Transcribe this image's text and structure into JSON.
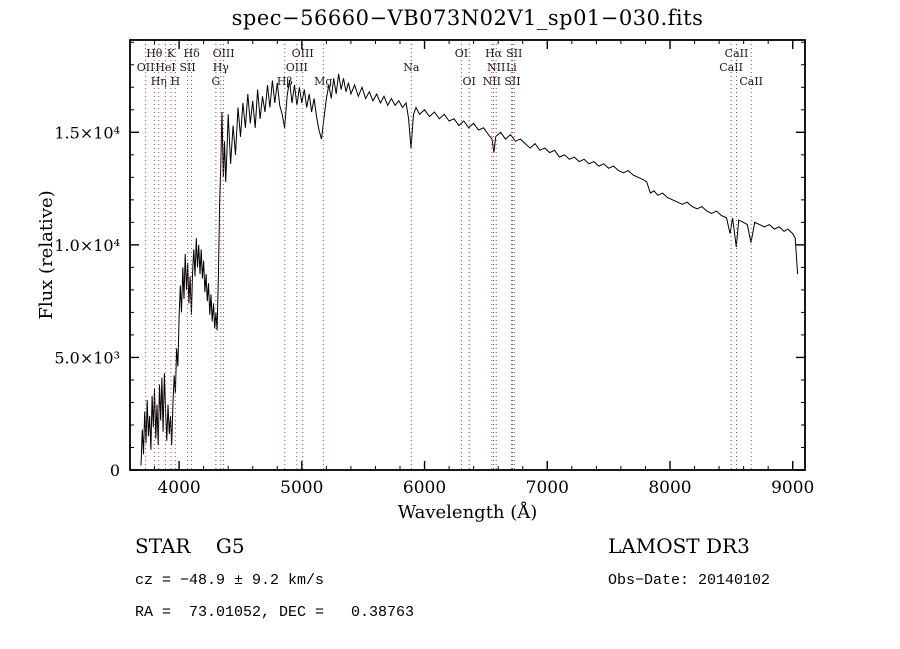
{
  "title": "spec−56660−VB073N02V1_sp01−030.fits",
  "footer": {
    "class_label": "STAR    G5",
    "survey": "LAMOST DR3",
    "cz": "cz = −48.9 ± 9.2 km/s",
    "obs_date": "Obs−Date: 20140102",
    "ra_dec": "RA =  73.01052, DEC =   0.38763"
  },
  "chart_data": {
    "type": "line",
    "title": "spec−56660−VB073N02V1_sp01−030.fits",
    "xlabel": "Wavelength (Å)",
    "ylabel": "Flux (relative)",
    "xlim": [
      3600,
      9100
    ],
    "ylim": [
      0,
      19100
    ],
    "grid": false,
    "legend": "none",
    "line_color": "#000000",
    "marker_color": "#b04040",
    "label_color": "#1a1a1a",
    "x_ticks": [
      {
        "value": 4000,
        "label": "4000"
      },
      {
        "value": 5000,
        "label": "5000"
      },
      {
        "value": 6000,
        "label": "6000"
      },
      {
        "value": 7000,
        "label": "7000"
      },
      {
        "value": 8000,
        "label": "8000"
      },
      {
        "value": 9000,
        "label": "9000"
      }
    ],
    "y_ticks": [
      {
        "value": 0,
        "label": "0"
      },
      {
        "value": 5000,
        "label": "5.0×10³"
      },
      {
        "value": 10000,
        "label": "1.0×10⁴"
      },
      {
        "value": 15000,
        "label": "1.5×10⁴"
      }
    ],
    "x_minor_step": 200,
    "y_minor_step": 1000,
    "spectral_lines": [
      {
        "label": "OII",
        "wavelength": 3727,
        "row": 2
      },
      {
        "label": "Hθ",
        "wavelength": 3798,
        "row": 1
      },
      {
        "label": "Hη",
        "wavelength": 3835,
        "row": 3
      },
      {
        "label": "HeI",
        "wavelength": 3889,
        "row": 2
      },
      {
        "label": "K",
        "wavelength": 3934,
        "row": 1
      },
      {
        "label": "H",
        "wavelength": 3969,
        "row": 3
      },
      {
        "label": "SII",
        "wavelength": 4069,
        "row": 2
      },
      {
        "label": "Hδ",
        "wavelength": 4102,
        "row": 1
      },
      {
        "label": "G",
        "wavelength": 4300,
        "row": 3
      },
      {
        "label": "Hγ",
        "wavelength": 4340,
        "row": 2
      },
      {
        "label": "OIII",
        "wavelength": 4363,
        "row": 1
      },
      {
        "label": "Hβ",
        "wavelength": 4861,
        "row": 3
      },
      {
        "label": "OIII",
        "wavelength": 4959,
        "row": 2
      },
      {
        "label": "OIII",
        "wavelength": 5007,
        "row": 1
      },
      {
        "label": "Mg",
        "wavelength": 5175,
        "row": 3
      },
      {
        "label": "Na",
        "wavelength": 5892,
        "row": 2
      },
      {
        "label": "OI",
        "wavelength": 6300,
        "row": 1
      },
      {
        "label": "OI",
        "wavelength": 6364,
        "row": 3
      },
      {
        "label": "NII",
        "wavelength": 6548,
        "row": 3
      },
      {
        "label": "Hα",
        "wavelength": 6563,
        "row": 1
      },
      {
        "label": "NII",
        "wavelength": 6584,
        "row": 2
      },
      {
        "label": "Li",
        "wavelength": 6708,
        "row": 2
      },
      {
        "label": "SII",
        "wavelength": 6717,
        "row": 3
      },
      {
        "label": "SII",
        "wavelength": 6731,
        "row": 1
      },
      {
        "label": "CaII",
        "wavelength": 8498,
        "row": 2
      },
      {
        "label": "CaII",
        "wavelength": 8542,
        "row": 1
      },
      {
        "label": "CaII",
        "wavelength": 8662,
        "row": 3
      }
    ],
    "series": [
      {
        "name": "spectrum",
        "points": [
          [
            3690,
            200
          ],
          [
            3700,
            1800
          ],
          [
            3710,
            700
          ],
          [
            3720,
            2600
          ],
          [
            3730,
            1200
          ],
          [
            3740,
            3100
          ],
          [
            3750,
            1500
          ],
          [
            3760,
            2400
          ],
          [
            3770,
            900
          ],
          [
            3780,
            3300
          ],
          [
            3790,
            1900
          ],
          [
            3800,
            3600
          ],
          [
            3810,
            1400
          ],
          [
            3820,
            2900
          ],
          [
            3830,
            1100
          ],
          [
            3840,
            3800
          ],
          [
            3850,
            2200
          ],
          [
            3860,
            4100
          ],
          [
            3870,
            1700
          ],
          [
            3880,
            4300
          ],
          [
            3890,
            2600
          ],
          [
            3900,
            1300
          ],
          [
            3910,
            2900
          ],
          [
            3920,
            1600
          ],
          [
            3930,
            2400
          ],
          [
            3940,
            1100
          ],
          [
            3950,
            3000
          ],
          [
            3960,
            4200
          ],
          [
            3970,
            3400
          ],
          [
            3980,
            5400
          ],
          [
            3990,
            4600
          ],
          [
            4000,
            6800
          ],
          [
            4010,
            8200
          ],
          [
            4020,
            7000
          ],
          [
            4030,
            9000
          ],
          [
            4040,
            7600
          ],
          [
            4050,
            9600
          ],
          [
            4060,
            8000
          ],
          [
            4070,
            9200
          ],
          [
            4080,
            7400
          ],
          [
            4090,
            8600
          ],
          [
            4100,
            6900
          ],
          [
            4110,
            8800
          ],
          [
            4120,
            9800
          ],
          [
            4130,
            8600
          ],
          [
            4140,
            10300
          ],
          [
            4150,
            9000
          ],
          [
            4160,
            10000
          ],
          [
            4170,
            8700
          ],
          [
            4180,
            9800
          ],
          [
            4190,
            8500
          ],
          [
            4200,
            9300
          ],
          [
            4210,
            7900
          ],
          [
            4220,
            8700
          ],
          [
            4230,
            7500
          ],
          [
            4240,
            8300
          ],
          [
            4250,
            6900
          ],
          [
            4260,
            7800
          ],
          [
            4270,
            6600
          ],
          [
            4280,
            7400
          ],
          [
            4290,
            6300
          ],
          [
            4300,
            7000
          ],
          [
            4310,
            6200
          ],
          [
            4320,
            8600
          ],
          [
            4330,
            11800
          ],
          [
            4340,
            13600
          ],
          [
            4350,
            15900
          ],
          [
            4360,
            13000
          ],
          [
            4370,
            14600
          ],
          [
            4380,
            12800
          ],
          [
            4390,
            14200
          ],
          [
            4400,
            15800
          ],
          [
            4420,
            13600
          ],
          [
            4440,
            15300
          ],
          [
            4460,
            14000
          ],
          [
            4480,
            16100
          ],
          [
            4500,
            14800
          ],
          [
            4520,
            16300
          ],
          [
            4540,
            15200
          ],
          [
            4560,
            16700
          ],
          [
            4580,
            15400
          ],
          [
            4600,
            16400
          ],
          [
            4620,
            15200
          ],
          [
            4640,
            16900
          ],
          [
            4660,
            15600
          ],
          [
            4680,
            16600
          ],
          [
            4700,
            15900
          ],
          [
            4720,
            17100
          ],
          [
            4740,
            16100
          ],
          [
            4760,
            17300
          ],
          [
            4780,
            16300
          ],
          [
            4800,
            17200
          ],
          [
            4820,
            16200
          ],
          [
            4840,
            15800
          ],
          [
            4860,
            15200
          ],
          [
            4880,
            16600
          ],
          [
            4900,
            17300
          ],
          [
            4920,
            16300
          ],
          [
            4940,
            17100
          ],
          [
            4960,
            16200
          ],
          [
            4980,
            17000
          ],
          [
            5000,
            16300
          ],
          [
            5020,
            16900
          ],
          [
            5040,
            16100
          ],
          [
            5060,
            16700
          ],
          [
            5080,
            15900
          ],
          [
            5100,
            16500
          ],
          [
            5120,
            15700
          ],
          [
            5140,
            15100
          ],
          [
            5160,
            14700
          ],
          [
            5180,
            15600
          ],
          [
            5200,
            16500
          ],
          [
            5220,
            17100
          ],
          [
            5240,
            16500
          ],
          [
            5260,
            17400
          ],
          [
            5280,
            16700
          ],
          [
            5300,
            17600
          ],
          [
            5320,
            16900
          ],
          [
            5340,
            17400
          ],
          [
            5360,
            16800
          ],
          [
            5380,
            17200
          ],
          [
            5400,
            16700
          ],
          [
            5430,
            17100
          ],
          [
            5460,
            16600
          ],
          [
            5490,
            17000
          ],
          [
            5520,
            16500
          ],
          [
            5550,
            16800
          ],
          [
            5580,
            16400
          ],
          [
            5610,
            16700
          ],
          [
            5640,
            16300
          ],
          [
            5670,
            16600
          ],
          [
            5700,
            16200
          ],
          [
            5730,
            16500
          ],
          [
            5760,
            16200
          ],
          [
            5790,
            16400
          ],
          [
            5820,
            16100
          ],
          [
            5850,
            16300
          ],
          [
            5870,
            15600
          ],
          [
            5890,
            14300
          ],
          [
            5910,
            15800
          ],
          [
            5930,
            16100
          ],
          [
            5960,
            15800
          ],
          [
            6000,
            16000
          ],
          [
            6040,
            15700
          ],
          [
            6080,
            15900
          ],
          [
            6120,
            15600
          ],
          [
            6160,
            15800
          ],
          [
            6200,
            15500
          ],
          [
            6240,
            15600
          ],
          [
            6280,
            15300
          ],
          [
            6320,
            15500
          ],
          [
            6360,
            15200
          ],
          [
            6400,
            15400
          ],
          [
            6440,
            15100
          ],
          [
            6480,
            15200
          ],
          [
            6520,
            14900
          ],
          [
            6550,
            14700
          ],
          [
            6565,
            14100
          ],
          [
            6580,
            14800
          ],
          [
            6620,
            15000
          ],
          [
            6660,
            14700
          ],
          [
            6700,
            14900
          ],
          [
            6740,
            14600
          ],
          [
            6780,
            14700
          ],
          [
            6820,
            14500
          ],
          [
            6860,
            14300
          ],
          [
            6900,
            14500
          ],
          [
            6940,
            14200
          ],
          [
            6980,
            14300
          ],
          [
            7020,
            14100
          ],
          [
            7060,
            14200
          ],
          [
            7100,
            13900
          ],
          [
            7140,
            14000
          ],
          [
            7180,
            13800
          ],
          [
            7220,
            13900
          ],
          [
            7260,
            13700
          ],
          [
            7300,
            13800
          ],
          [
            7340,
            13600
          ],
          [
            7380,
            13700
          ],
          [
            7420,
            13500
          ],
          [
            7460,
            13600
          ],
          [
            7500,
            13400
          ],
          [
            7540,
            13500
          ],
          [
            7580,
            13300
          ],
          [
            7620,
            13200
          ],
          [
            7660,
            13300
          ],
          [
            7700,
            13100
          ],
          [
            7740,
            13000
          ],
          [
            7780,
            12900
          ],
          [
            7810,
            12800
          ],
          [
            7840,
            12300
          ],
          [
            7870,
            12400
          ],
          [
            7900,
            12200
          ],
          [
            7940,
            12300
          ],
          [
            7980,
            12100
          ],
          [
            8020,
            12000
          ],
          [
            8060,
            11900
          ],
          [
            8100,
            11800
          ],
          [
            8140,
            11900
          ],
          [
            8180,
            11700
          ],
          [
            8220,
            11600
          ],
          [
            8260,
            11700
          ],
          [
            8300,
            11500
          ],
          [
            8340,
            11400
          ],
          [
            8380,
            11500
          ],
          [
            8420,
            11300
          ],
          [
            8460,
            11200
          ],
          [
            8490,
            10500
          ],
          [
            8510,
            11200
          ],
          [
            8540,
            9900
          ],
          [
            8560,
            11100
          ],
          [
            8600,
            11000
          ],
          [
            8630,
            10900
          ],
          [
            8660,
            10100
          ],
          [
            8690,
            11000
          ],
          [
            8730,
            10900
          ],
          [
            8770,
            10800
          ],
          [
            8810,
            10900
          ],
          [
            8850,
            10700
          ],
          [
            8890,
            10800
          ],
          [
            8930,
            10600
          ],
          [
            8960,
            10700
          ],
          [
            9000,
            10500
          ],
          [
            9020,
            10300
          ],
          [
            9040,
            8700
          ]
        ]
      }
    ]
  }
}
